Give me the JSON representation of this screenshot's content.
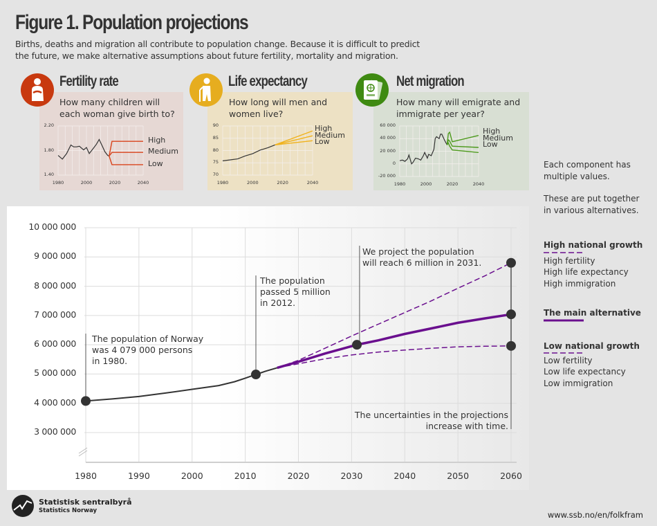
{
  "header": {
    "title": "Figure 1. Population projections",
    "subtitle_lines": [
      "Births, deaths and migration all contribute to population change. Because it is difficult to predict",
      "the future, we make alternative assumptions about future fertility, mortality and migration."
    ]
  },
  "panels": [
    {
      "title": "Fertility rate",
      "question": [
        "How many children will",
        "each woman give birth to?"
      ],
      "color": "#c8390f",
      "bg": "#e6d8d4",
      "icon": "pregnant-woman-icon"
    },
    {
      "title": "Life expectancy",
      "question": [
        "How long will men and",
        "women live?"
      ],
      "color": "#e6ad1f",
      "bg": "#ede1c4",
      "icon": "elderly-person-icon"
    },
    {
      "title": "Net migration",
      "question": [
        "How many will emigrate and",
        "immigrate per year?"
      ],
      "color": "#3f8a12",
      "bg": "#d8dfd3",
      "icon": "passport-icon"
    }
  ],
  "sidebar": {
    "intro1": [
      "Each component has",
      "multiple values."
    ],
    "intro2": [
      "These are put together",
      "in various alternatives."
    ],
    "high": {
      "title": "High national growth",
      "items": [
        "High fertility",
        "High life expectancy",
        "High immigration"
      ]
    },
    "main": {
      "title": "The main alternative"
    },
    "low": {
      "title": "Low national growth",
      "items": [
        "Low fertility",
        "Low life expectancy",
        "Low immigration"
      ]
    }
  },
  "annotations": {
    "a1980": [
      "The population of Norway",
      "was 4 079 000 persons",
      "in 1980."
    ],
    "a2012": [
      "The population",
      "passed 5 million",
      "in 2012."
    ],
    "a2031": [
      "We project the population",
      "will reach 6 million in 2031."
    ],
    "a2060": [
      "The uncertainties in the projections",
      "increase with time."
    ]
  },
  "footer": {
    "org": "Statistisk sentralbyrå",
    "org_en": "Statistics Norway",
    "url": "www.ssb.no/en/folkfram"
  },
  "chart_data": [
    {
      "type": "line",
      "title": "",
      "xlim": [
        1980,
        2060
      ],
      "ylim": [
        2000000,
        10000000
      ],
      "axis_break": true,
      "grid": true,
      "accent": "#6a0f8e",
      "xticks": [
        "1980",
        "1990",
        "2000",
        "2010",
        "2020",
        "2030",
        "2040",
        "2050",
        "2060"
      ],
      "yticks": [
        "3 000 000",
        "4 000 000",
        "5 000 000",
        "6 000 000",
        "7 000 000",
        "8 000 000",
        "9 000 000",
        "10 000 000"
      ],
      "series": [
        {
          "name": "",
          "style": "solid-dark",
          "x": [
            1980,
            1985,
            1990,
            1995,
            2000,
            2005,
            2008,
            2010,
            2012,
            2014,
            2016
          ],
          "y": [
            4079000,
            4150000,
            4233000,
            4350000,
            4478000,
            4606000,
            4737000,
            4858000,
            4986000,
            5108000,
            5214000
          ]
        },
        {
          "name": "High national growth",
          "style": "dashed",
          "x": [
            2016,
            2020,
            2025,
            2030,
            2035,
            2040,
            2045,
            2050,
            2055,
            2060
          ],
          "y": [
            5214000,
            5470000,
            5880000,
            6300000,
            6700000,
            7100000,
            7500000,
            7930000,
            8350000,
            8800000
          ]
        },
        {
          "name": "The main alternative",
          "style": "solid",
          "x": [
            2016,
            2020,
            2025,
            2031,
            2035,
            2040,
            2045,
            2050,
            2055,
            2060
          ],
          "y": [
            5214000,
            5420000,
            5700000,
            6000000,
            6150000,
            6370000,
            6560000,
            6750000,
            6900000,
            7040000
          ]
        },
        {
          "name": "Low national growth",
          "style": "dashed",
          "x": [
            2016,
            2020,
            2025,
            2030,
            2035,
            2040,
            2045,
            2050,
            2055,
            2060
          ],
          "y": [
            5214000,
            5350000,
            5520000,
            5650000,
            5750000,
            5820000,
            5880000,
            5930000,
            5950000,
            5960000
          ]
        }
      ],
      "markers": [
        {
          "x": 1980,
          "y": 4079000
        },
        {
          "x": 2012,
          "y": 4986000
        },
        {
          "x": 2031,
          "y": 6000000
        },
        {
          "x": 2060,
          "y": 8800000
        },
        {
          "x": 2060,
          "y": 7040000
        },
        {
          "x": 2060,
          "y": 5960000
        }
      ]
    },
    {
      "type": "line",
      "panel": "Fertility rate",
      "xlim": [
        1980,
        2040
      ],
      "ylim": [
        1.4,
        2.2
      ],
      "xticks": [
        "1980",
        "2000",
        "2020",
        "2040"
      ],
      "yticks": [
        "1.40",
        "1.80",
        "2.20"
      ],
      "history": {
        "x": [
          1980,
          1983,
          1986,
          1989,
          1991,
          1993,
          1995,
          1998,
          2000,
          2002,
          2005,
          2007,
          2009,
          2011,
          2013,
          2015,
          2016
        ],
        "y": [
          1.72,
          1.66,
          1.75,
          1.89,
          1.86,
          1.86,
          1.87,
          1.81,
          1.85,
          1.75,
          1.84,
          1.9,
          1.98,
          1.88,
          1.78,
          1.72,
          1.71
        ]
      },
      "projections": [
        {
          "name": "High",
          "x": [
            2016,
            2018,
            2040
          ],
          "y": [
            1.71,
            1.95,
            1.95
          ]
        },
        {
          "name": "Medium",
          "x": [
            2016,
            2018,
            2040
          ],
          "y": [
            1.71,
            1.77,
            1.77
          ]
        },
        {
          "name": "Low",
          "x": [
            2016,
            2018,
            2040
          ],
          "y": [
            1.71,
            1.57,
            1.57
          ]
        }
      ]
    },
    {
      "type": "line",
      "panel": "Life expectancy",
      "xlim": [
        1980,
        2040
      ],
      "ylim": [
        70,
        90
      ],
      "xticks": [
        "1980",
        "2000",
        "2020",
        "2040"
      ],
      "yticks": [
        "70",
        "75",
        "80",
        "85",
        "90"
      ],
      "history": {
        "x": [
          1980,
          1985,
          1990,
          1995,
          2000,
          2005,
          2010,
          2015
        ],
        "y": [
          75.8,
          76.2,
          76.6,
          77.8,
          78.7,
          80.2,
          81.1,
          82.3
        ]
      },
      "projections": [
        {
          "name": "High",
          "x": [
            2015,
            2040
          ],
          "y": [
            82.3,
            88
          ]
        },
        {
          "name": "Medium",
          "x": [
            2015,
            2040
          ],
          "y": [
            82.3,
            86
          ]
        },
        {
          "name": "Low",
          "x": [
            2015,
            2040
          ],
          "y": [
            82.3,
            84
          ]
        }
      ]
    },
    {
      "type": "line",
      "panel": "Net migration",
      "xlim": [
        1980,
        2040
      ],
      "ylim": [
        -20000,
        60000
      ],
      "xticks": [
        "1980",
        "2000",
        "2020",
        "2040"
      ],
      "yticks": [
        "-20 000",
        "0",
        "20 000",
        "40 000",
        "60 000"
      ],
      "history": {
        "x": [
          1980,
          1982,
          1984,
          1986,
          1987,
          1989,
          1990,
          1992,
          1994,
          1996,
          1998,
          1999,
          2001,
          2002,
          2004,
          2006,
          2007,
          2008,
          2010,
          2011,
          2012,
          2014,
          2016
        ],
        "y": [
          5000,
          6000,
          4000,
          8000,
          14000,
          0,
          2000,
          9000,
          8000,
          6000,
          13000,
          18000,
          9000,
          15000,
          13000,
          23000,
          40000,
          43000,
          40000,
          47000,
          47000,
          38000,
          30000
        ]
      },
      "projections": [
        {
          "name": "High",
          "x": [
            2016,
            2017,
            2018,
            2020,
            2040
          ],
          "y": [
            30000,
            48000,
            50000,
            35000,
            45000
          ]
        },
        {
          "name": "Medium",
          "x": [
            2016,
            2017,
            2018,
            2020,
            2040
          ],
          "y": [
            30000,
            38000,
            36000,
            28000,
            26000
          ]
        },
        {
          "name": "Low",
          "x": [
            2016,
            2017,
            2018,
            2020,
            2040
          ],
          "y": [
            30000,
            33000,
            28000,
            22000,
            18000
          ]
        }
      ]
    }
  ]
}
